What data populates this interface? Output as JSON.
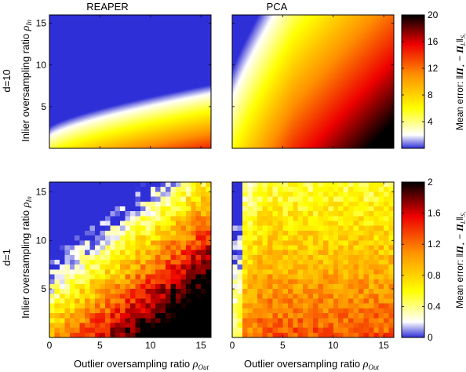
{
  "chart_data": {
    "type": "heatmap",
    "column_titles": [
      "REAPER",
      "PCA"
    ],
    "row_labels": [
      "d=10",
      "d=1"
    ],
    "xlabel": {
      "text": "Outlier oversampling ratio ",
      "symbol": "ρ",
      "subscript": "Out"
    },
    "ylabel": {
      "text": "Inlier oversampling ratio ",
      "symbol": "ρ",
      "subscript": "In"
    },
    "xlim": [
      0,
      16
    ],
    "ylim": [
      0,
      16
    ],
    "x_ticks": [
      "0",
      "5",
      "10",
      "15"
    ],
    "y_ticks": [
      "5",
      "10",
      "15"
    ],
    "colorbar_label": {
      "prefix": "Mean error: ‖",
      "a": "Π",
      "a_sub": "⋆",
      "minus": " − ",
      "b": "Π",
      "b_sub": "L",
      "suffix": "‖",
      "norm_sub": "S₁"
    },
    "colormap": {
      "name": "blue-white-yellow-red-black",
      "stops": [
        "#2f2fd8",
        "#ffffff",
        "#ffff00",
        "#ff9000",
        "#ee0000",
        "#000000"
      ]
    },
    "rows": [
      {
        "label": "d=10",
        "colorbar_range": [
          0,
          20
        ],
        "colorbar_ticks": [
          "4",
          "8",
          "12",
          "16",
          "20"
        ],
        "panels": [
          {
            "title": "REAPER",
            "surface": "smooth",
            "summary": "Error is near 0 (blue/white) for small outlier ratio and high inlier ratio; rises to ~20 (dark red) at large outlier ratio and low inlier ratio. Boundary near rho_In ≈ 0.7 * rho_Out^0.7 + 1."
          },
          {
            "title": "PCA",
            "surface": "smooth",
            "summary": "Only a thin low-error region near rho_Out ≈ 0; error quickly rises to yellow and red across most of the panel."
          }
        ]
      },
      {
        "label": "d=1",
        "colorbar_range": [
          0,
          2
        ],
        "colorbar_ticks": [
          "0.4",
          "0.8",
          "1.2",
          "1.6",
          "2"
        ],
        "panels": [
          {
            "title": "REAPER",
            "surface": "blocky",
            "summary": "Noisy blocky map; low error (blue) upper-left, high error (black) along the bottom rows."
          },
          {
            "title": "PCA",
            "surface": "blocky",
            "summary": "Low error only at very small outlier ratio; yellow-red over most of the panel, black at the bottom."
          }
        ]
      }
    ]
  }
}
